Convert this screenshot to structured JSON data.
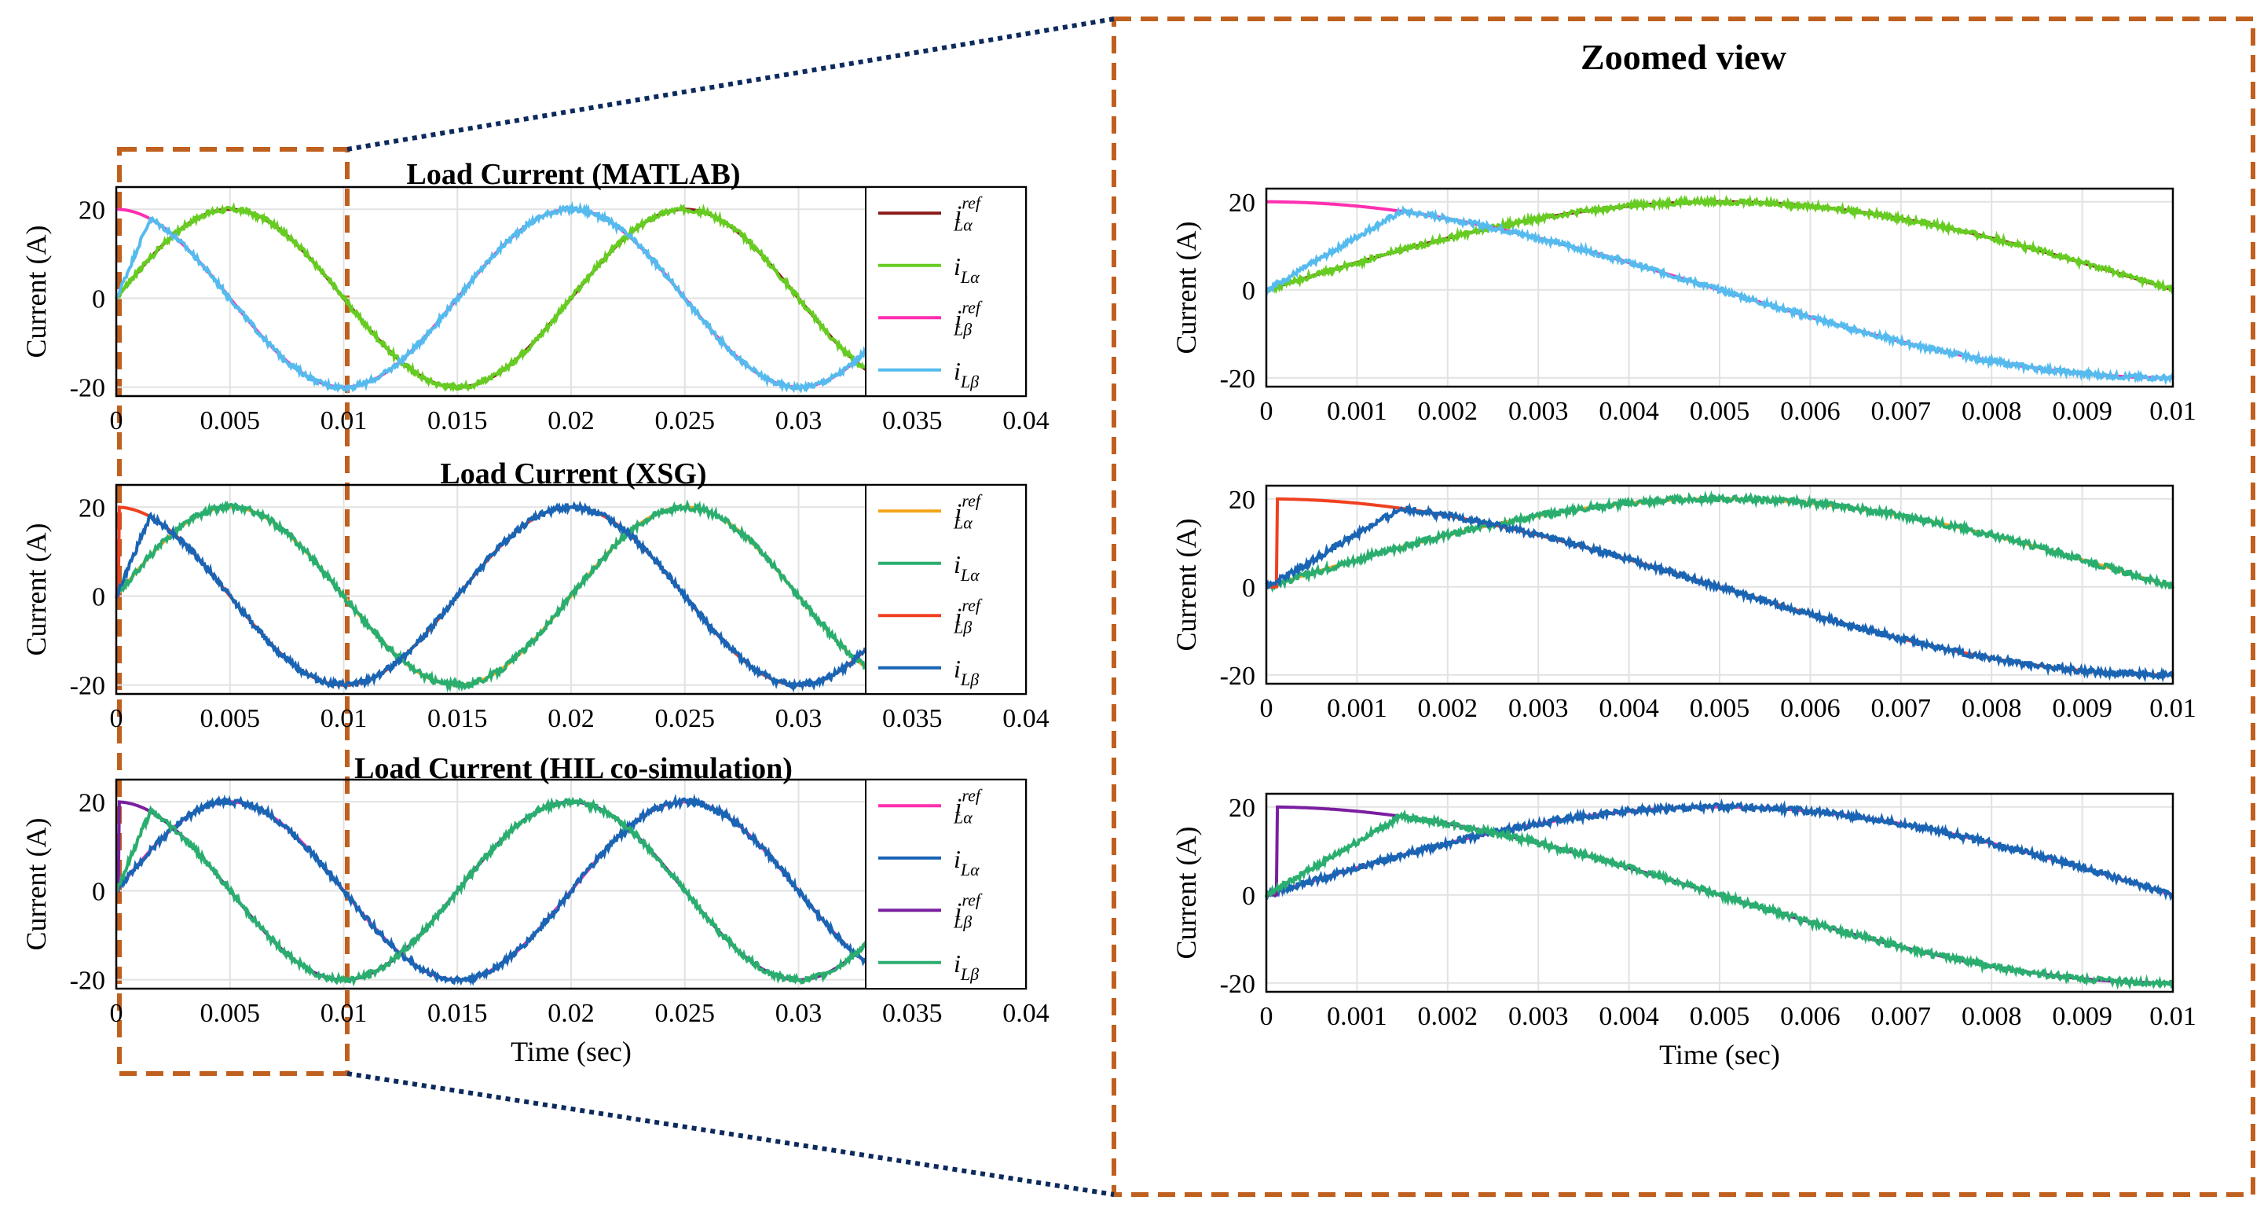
{
  "figure": {
    "zoom_title": "Zoomed view",
    "colors": {
      "zoom_box": "#c0601e",
      "connector": "#0d2a5c",
      "grid": "#e2e2e2",
      "axis": "#000000"
    }
  },
  "chart_data": [
    {
      "id": "matlab",
      "type": "line",
      "title": "Load Current (MATLAB)",
      "xlabel": "",
      "ylabel": "Current (A)",
      "xlim": [
        0,
        0.04
      ],
      "ylim": [
        -22,
        25
      ],
      "xticks": [
        "0",
        "0.005",
        "0.01",
        "0.015",
        "0.02",
        "0.025",
        "0.03",
        "0.035",
        "0.04"
      ],
      "yticks": [
        "20",
        "0",
        "-20"
      ],
      "yvals": [
        20,
        0,
        -20
      ],
      "legend": [
        {
          "base": "i",
          "sup": "ref",
          "sub": "Lα",
          "color": "#8b1a1a"
        },
        {
          "base": "i",
          "sup": "",
          "sub": "Lα",
          "color": "#66cc22"
        },
        {
          "base": "i",
          "sup": "ref",
          "sub": "Lβ",
          "color": "#ff2fb0"
        },
        {
          "base": "i",
          "sup": "",
          "sub": "Lβ",
          "color": "#55bbee"
        }
      ],
      "series": [
        {
          "name": "i_Lα^ref",
          "kind": "sin",
          "amp": 20,
          "freq": 50,
          "color": "#8b1a1a",
          "noise": 0
        },
        {
          "name": "i_Lα",
          "kind": "sin",
          "amp": 20,
          "freq": 50,
          "color": "#66cc22",
          "noise": 0.6
        },
        {
          "name": "i_Lβ^ref",
          "kind": "cos",
          "amp": 20,
          "freq": 50,
          "color": "#ff2fb0",
          "noise": 0
        },
        {
          "name": "i_Lβ",
          "kind": "cos",
          "amp": 20,
          "freq": 50,
          "start": "rise",
          "color": "#55bbee",
          "noise": 0.6
        }
      ]
    },
    {
      "id": "xsg",
      "type": "line",
      "title": "Load Current (XSG)",
      "xlabel": "",
      "ylabel": "Current (A)",
      "xlim": [
        0,
        0.04
      ],
      "ylim": [
        -22,
        25
      ],
      "xticks": [
        "0",
        "0.005",
        "0.01",
        "0.015",
        "0.02",
        "0.025",
        "0.03",
        "0.035",
        "0.04"
      ],
      "yticks": [
        "20",
        "0",
        "-20"
      ],
      "yvals": [
        20,
        0,
        -20
      ],
      "legend": [
        {
          "base": "i",
          "sup": "ref",
          "sub": "Lα",
          "color": "#f2a51a"
        },
        {
          "base": "i",
          "sup": "",
          "sub": "Lα",
          "color": "#2aae6f"
        },
        {
          "base": "i",
          "sup": "ref",
          "sub": "Lβ",
          "color": "#f04020"
        },
        {
          "base": "i",
          "sup": "",
          "sub": "Lβ",
          "color": "#1a64b4"
        }
      ],
      "series": [
        {
          "name": "i_Lα^ref",
          "kind": "sin",
          "amp": 20,
          "freq": 50,
          "color": "#f2a51a",
          "noise": 0
        },
        {
          "name": "i_Lα",
          "kind": "sin",
          "amp": 20,
          "freq": 50,
          "color": "#2aae6f",
          "noise": 0.7
        },
        {
          "name": "i_Lβ^ref",
          "kind": "cos",
          "amp": 20,
          "freq": 50,
          "start": "step",
          "color": "#f04020",
          "noise": 0
        },
        {
          "name": "i_Lβ",
          "kind": "cos",
          "amp": 20,
          "freq": 50,
          "start": "rise",
          "color": "#1a64b4",
          "noise": 0.7
        }
      ]
    },
    {
      "id": "hil",
      "type": "line",
      "title": "Load Current (HIL co-simulation)",
      "xlabel": "Time (sec)",
      "ylabel": "Current (A)",
      "xlim": [
        0,
        0.04
      ],
      "ylim": [
        -22,
        25
      ],
      "xticks": [
        "0",
        "0.005",
        "0.01",
        "0.015",
        "0.02",
        "0.025",
        "0.03",
        "0.035",
        "0.04"
      ],
      "yticks": [
        "20",
        "0",
        "-20"
      ],
      "yvals": [
        20,
        0,
        -20
      ],
      "legend": [
        {
          "base": "i",
          "sup": "ref",
          "sub": "Lα",
          "color": "#ff2fb0"
        },
        {
          "base": "i",
          "sup": "",
          "sub": "Lα",
          "color": "#1a64b4"
        },
        {
          "base": "i",
          "sup": "ref",
          "sub": "Lβ",
          "color": "#7a1fa0"
        },
        {
          "base": "i",
          "sup": "",
          "sub": "Lβ",
          "color": "#2aae6f"
        }
      ],
      "series": [
        {
          "name": "i_Lα^ref",
          "kind": "sin",
          "amp": 20,
          "freq": 50,
          "color": "#ff2fb0",
          "noise": 0
        },
        {
          "name": "i_Lα",
          "kind": "sin",
          "amp": 20,
          "freq": 50,
          "color": "#1a64b4",
          "noise": 0.7
        },
        {
          "name": "i_Lβ^ref",
          "kind": "cos",
          "amp": 20,
          "freq": 50,
          "start": "step",
          "color": "#7a1fa0",
          "noise": 0
        },
        {
          "name": "i_Lβ",
          "kind": "cos",
          "amp": 20,
          "freq": 50,
          "start": "rise",
          "color": "#2aae6f",
          "noise": 0.7
        }
      ]
    },
    {
      "id": "zoom-matlab",
      "type": "line",
      "title": "",
      "xlabel": "",
      "ylabel": "Current (A)",
      "xlim": [
        0,
        0.01
      ],
      "ylim": [
        -22,
        23
      ],
      "xticks": [
        "0",
        "0.001",
        "0.002",
        "0.003",
        "0.004",
        "0.005",
        "0.006",
        "0.007",
        "0.008",
        "0.009",
        "0.01"
      ],
      "yticks": [
        "20",
        "0",
        "-20"
      ],
      "yvals": [
        20,
        0,
        -20
      ],
      "legend": [],
      "series": [
        {
          "name": "i_Lα^ref",
          "kind": "sin",
          "amp": 20,
          "freq": 50,
          "color": "#8b1a1a",
          "noise": 0
        },
        {
          "name": "i_Lα",
          "kind": "sin",
          "amp": 20,
          "freq": 50,
          "color": "#66cc22",
          "noise": 0.6
        },
        {
          "name": "i_Lβ^ref",
          "kind": "cos",
          "amp": 20,
          "freq": 50,
          "color": "#ff2fb0",
          "noise": 0
        },
        {
          "name": "i_Lβ",
          "kind": "cos",
          "amp": 20,
          "freq": 50,
          "start": "rise",
          "color": "#55bbee",
          "noise": 0.6
        }
      ]
    },
    {
      "id": "zoom-xsg",
      "type": "line",
      "title": "",
      "xlabel": "",
      "ylabel": "Current (A)",
      "xlim": [
        0,
        0.01
      ],
      "ylim": [
        -22,
        23
      ],
      "xticks": [
        "0",
        "0.001",
        "0.002",
        "0.003",
        "0.004",
        "0.005",
        "0.006",
        "0.007",
        "0.008",
        "0.009",
        "0.01"
      ],
      "yticks": [
        "20",
        "0",
        "-20"
      ],
      "yvals": [
        20,
        0,
        -20
      ],
      "legend": [],
      "series": [
        {
          "name": "i_Lα^ref",
          "kind": "sin",
          "amp": 20,
          "freq": 50,
          "color": "#f2a51a",
          "noise": 0
        },
        {
          "name": "i_Lα",
          "kind": "sin",
          "amp": 20,
          "freq": 50,
          "color": "#2aae6f",
          "noise": 0.7
        },
        {
          "name": "i_Lβ^ref",
          "kind": "cos",
          "amp": 20,
          "freq": 50,
          "start": "step",
          "color": "#f04020",
          "noise": 0
        },
        {
          "name": "i_Lβ",
          "kind": "cos",
          "amp": 20,
          "freq": 50,
          "start": "rise",
          "color": "#1a64b4",
          "noise": 0.7
        }
      ]
    },
    {
      "id": "zoom-hil",
      "type": "line",
      "title": "",
      "xlabel": "Time (sec)",
      "ylabel": "Current (A)",
      "xlim": [
        0,
        0.01
      ],
      "ylim": [
        -22,
        23
      ],
      "xticks": [
        "0",
        "0.001",
        "0.002",
        "0.003",
        "0.004",
        "0.005",
        "0.006",
        "0.007",
        "0.008",
        "0.009",
        "0.01"
      ],
      "yticks": [
        "20",
        "0",
        "-20"
      ],
      "yvals": [
        20,
        0,
        -20
      ],
      "legend": [],
      "series": [
        {
          "name": "i_Lα^ref",
          "kind": "sin",
          "amp": 20,
          "freq": 50,
          "color": "#ff2fb0",
          "noise": 0
        },
        {
          "name": "i_Lα",
          "kind": "sin",
          "amp": 20,
          "freq": 50,
          "color": "#1a64b4",
          "noise": 0.7
        },
        {
          "name": "i_Lβ^ref",
          "kind": "cos",
          "amp": 20,
          "freq": 50,
          "start": "step",
          "color": "#7a1fa0",
          "noise": 0
        },
        {
          "name": "i_Lβ",
          "kind": "cos",
          "amp": 20,
          "freq": 50,
          "start": "rise",
          "color": "#2aae6f",
          "noise": 0.7
        }
      ]
    }
  ]
}
